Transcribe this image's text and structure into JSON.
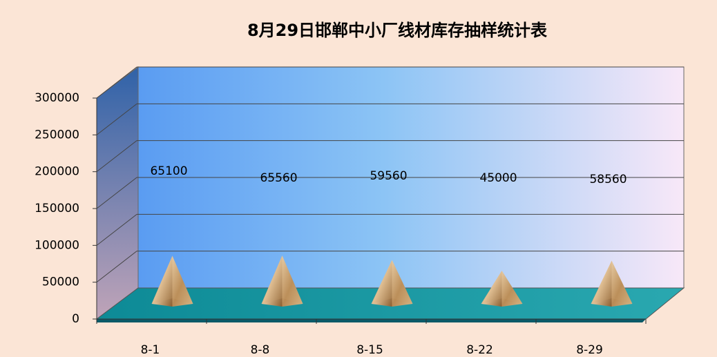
{
  "chart_data": {
    "type": "pyramid3d",
    "title": "8月29日邯郸中小厂线材库存抽样统计表",
    "categories": [
      "8-1",
      "8-8",
      "8-15",
      "8-22",
      "8-29"
    ],
    "values": [
      65100,
      65560,
      59560,
      45000,
      58560
    ],
    "ylim": [
      0,
      300000
    ],
    "yticks": [
      0,
      50000,
      100000,
      150000,
      200000,
      250000,
      300000
    ],
    "grid": true,
    "color": "#c9a06a"
  }
}
